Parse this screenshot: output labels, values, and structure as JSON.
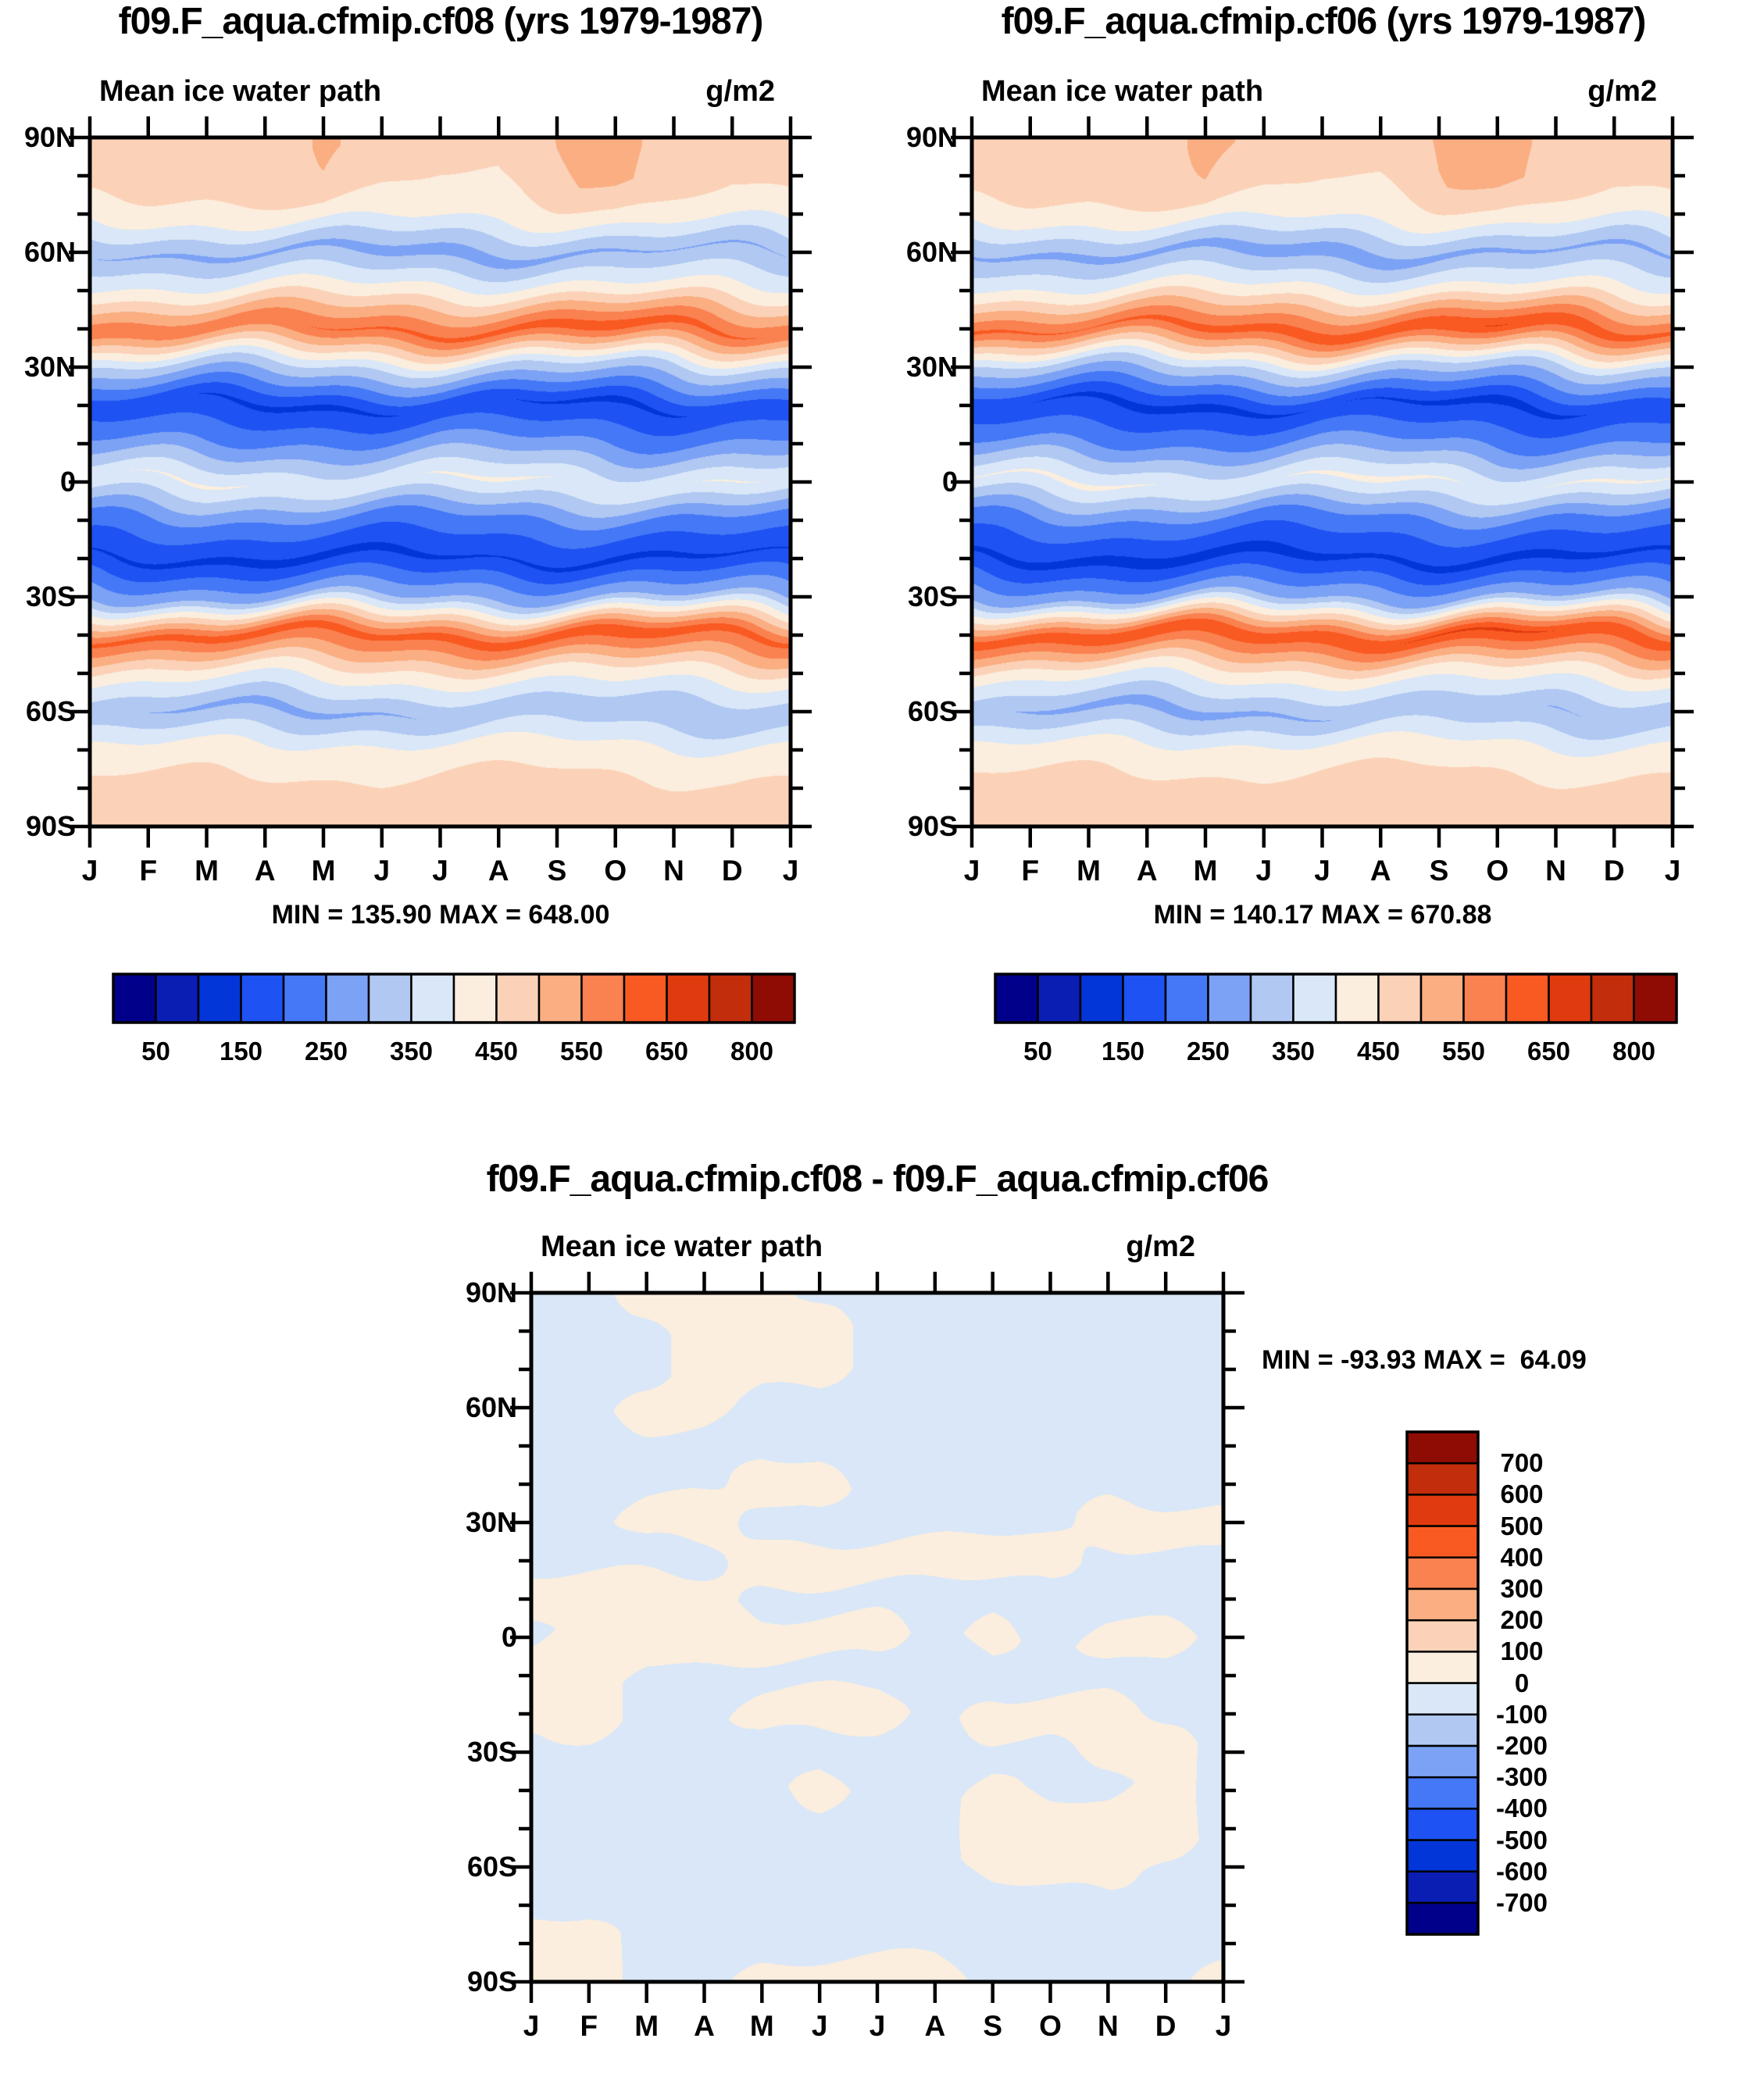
{
  "figure": {
    "panels": [
      {
        "title": "f09.F_aqua.cfmip.cf08 (yrs 1979-1987)",
        "subtitle": "Mean ice water path",
        "units": "g/m2",
        "minmax": "MIN = 135.90 MAX = 648.00"
      },
      {
        "title": "f09.F_aqua.cfmip.cf06 (yrs 1979-1987)",
        "subtitle": "Mean ice water path",
        "units": "g/m2",
        "minmax": "MIN = 140.17 MAX = 670.88"
      },
      {
        "title": "f09.F_aqua.cfmip.cf08 - f09.F_aqua.cfmip.cf06",
        "subtitle": "Mean ice water path",
        "units": "g/m2",
        "minmax": "MIN = -93.93 MAX =  64.09"
      }
    ],
    "axis": {
      "lat_labels": [
        "90N",
        "60N",
        "30N",
        "0",
        "30S",
        "60S",
        "90S"
      ],
      "month_labels": [
        "J",
        "F",
        "M",
        "A",
        "M",
        "J",
        "J",
        "A",
        "S",
        "O",
        "N",
        "D",
        "J"
      ]
    },
    "colorbars": {
      "top_labels": [
        "50",
        "150",
        "250",
        "350",
        "450",
        "550",
        "650",
        "800"
      ],
      "diff_labels": [
        "700",
        "600",
        "500",
        "400",
        "300",
        "200",
        "100",
        "0",
        "-100",
        "-200",
        "-300",
        "-400",
        "-500",
        "-600",
        "-700"
      ],
      "palette": [
        "#00008B",
        "#0A1EB4",
        "#0336D8",
        "#1E52F2",
        "#4478F6",
        "#7CA2F5",
        "#B0C8F2",
        "#D9E7F8",
        "#FBEEDE",
        "#FBD2B8",
        "#FAAE82",
        "#FA8150",
        "#F95A21",
        "#E03A0F",
        "#C22D0B",
        "#8E0C04"
      ]
    }
  },
  "chart_data": [
    {
      "type": "heatmap",
      "name": "f09.F_aqua.cfmip.cf08",
      "title": "Mean ice water path",
      "units": "g/m2",
      "x_labels": [
        "J",
        "F",
        "M",
        "A",
        "M",
        "J",
        "J",
        "A",
        "S",
        "O",
        "N",
        "D",
        "J"
      ],
      "y_lat_deg": [
        90,
        80,
        70,
        60,
        50,
        40,
        30,
        20,
        10,
        0,
        -10,
        -20,
        -30,
        -40,
        -50,
        -60,
        -70,
        -80,
        -90
      ],
      "levels": [
        50,
        100,
        150,
        200,
        250,
        300,
        350,
        400,
        450,
        500,
        550,
        600,
        650,
        700,
        800
      ],
      "min": 135.9,
      "max": 648.0,
      "values": [
        [
          470,
          468,
          470,
          478,
          505,
          488,
          472,
          468,
          502,
          512,
          486,
          470,
          470
        ],
        [
          478,
          482,
          476,
          486,
          498,
          470,
          452,
          448,
          495,
          508,
          482,
          462,
          478
        ],
        [
          430,
          432,
          428,
          430,
          436,
          420,
          415,
          412,
          428,
          438,
          430,
          422,
          430
        ],
        [
          300,
          295,
          290,
          292,
          288,
          282,
          278,
          282,
          290,
          295,
          298,
          296,
          300
        ],
        [
          420,
          415,
          412,
          416,
          422,
          426,
          430,
          432,
          426,
          420,
          415,
          418,
          420
        ],
        [
          595,
          590,
          588,
          596,
          602,
          606,
          612,
          618,
          628,
          634,
          622,
          606,
          595
        ],
        [
          340,
          335,
          330,
          334,
          340,
          346,
          350,
          352,
          344,
          338,
          332,
          336,
          340
        ],
        [
          168,
          158,
          148,
          140,
          138,
          146,
          158,
          152,
          144,
          138,
          146,
          162,
          168
        ],
        [
          262,
          252,
          246,
          250,
          256,
          262,
          272,
          266,
          256,
          250,
          256,
          262,
          262
        ],
        [
          398,
          402,
          408,
          398,
          388,
          392,
          404,
          410,
          400,
          392,
          398,
          404,
          398
        ],
        [
          238,
          244,
          250,
          244,
          234,
          228,
          234,
          240,
          246,
          240,
          234,
          240,
          238
        ],
        [
          148,
          143,
          138,
          136,
          134,
          138,
          144,
          148,
          143,
          138,
          141,
          146,
          148
        ],
        [
          298,
          292,
          286,
          282,
          288,
          294,
          300,
          306,
          300,
          294,
          288,
          294,
          298
        ],
        [
          612,
          618,
          624,
          630,
          622,
          616,
          622,
          628,
          634,
          640,
          630,
          620,
          612
        ],
        [
          428,
          424,
          420,
          424,
          430,
          436,
          430,
          424,
          430,
          436,
          430,
          424,
          428
        ],
        [
          312,
          300,
          290,
          286,
          290,
          296,
          302,
          312,
          318,
          312,
          302,
          306,
          312
        ],
        [
          420,
          414,
          410,
          414,
          420,
          426,
          430,
          426,
          420,
          414,
          410,
          414,
          420
        ],
        [
          462,
          468,
          474,
          468,
          462,
          456,
          462,
          470,
          476,
          470,
          462,
          456,
          462
        ],
        [
          458,
          464,
          470,
          464,
          458,
          452,
          458,
          464,
          470,
          464,
          458,
          452,
          458
        ]
      ]
    },
    {
      "type": "heatmap",
      "name": "f09.F_aqua.cfmip.cf06",
      "title": "Mean ice water path",
      "units": "g/m2",
      "x_labels": [
        "J",
        "F",
        "M",
        "A",
        "M",
        "J",
        "J",
        "A",
        "S",
        "O",
        "N",
        "D",
        "J"
      ],
      "y_lat_deg": [
        90,
        80,
        70,
        60,
        50,
        40,
        30,
        20,
        10,
        0,
        -10,
        -20,
        -30,
        -40,
        -50,
        -60,
        -70,
        -80,
        -90
      ],
      "levels": [
        50,
        100,
        150,
        200,
        250,
        300,
        350,
        400,
        450,
        500,
        550,
        600,
        650,
        700,
        800
      ],
      "min": 140.17,
      "max": 670.88,
      "values": [
        [
          475,
          470,
          472,
          482,
          508,
          492,
          475,
          470,
          505,
          515,
          490,
          474,
          475
        ],
        [
          482,
          486,
          480,
          490,
          500,
          474,
          456,
          452,
          498,
          512,
          486,
          466,
          482
        ],
        [
          432,
          434,
          430,
          432,
          438,
          422,
          418,
          415,
          430,
          440,
          432,
          424,
          432
        ],
        [
          296,
          290,
          286,
          288,
          284,
          278,
          274,
          278,
          286,
          292,
          295,
          292,
          296
        ],
        [
          418,
          412,
          410,
          414,
          420,
          424,
          428,
          430,
          424,
          418,
          413,
          416,
          418
        ],
        [
          612,
          606,
          602,
          612,
          620,
          624,
          630,
          636,
          646,
          654,
          640,
          622,
          612
        ],
        [
          336,
          330,
          326,
          330,
          336,
          342,
          346,
          348,
          340,
          334,
          328,
          332,
          336
        ],
        [
          160,
          150,
          142,
          136,
          134,
          142,
          152,
          147,
          140,
          134,
          142,
          156,
          160
        ],
        [
          256,
          246,
          240,
          244,
          250,
          256,
          266,
          260,
          250,
          244,
          250,
          256,
          256
        ],
        [
          402,
          406,
          412,
          402,
          392,
          396,
          408,
          414,
          404,
          396,
          402,
          408,
          402
        ],
        [
          234,
          240,
          246,
          240,
          230,
          224,
          230,
          236,
          242,
          236,
          230,
          236,
          234
        ],
        [
          144,
          139,
          134,
          132,
          130,
          134,
          140,
          144,
          139,
          134,
          137,
          142,
          144
        ],
        [
          294,
          288,
          282,
          278,
          284,
          290,
          296,
          302,
          296,
          290,
          284,
          290,
          294
        ],
        [
          628,
          634,
          642,
          650,
          640,
          632,
          640,
          648,
          656,
          662,
          650,
          638,
          628
        ],
        [
          424,
          420,
          416,
          420,
          426,
          432,
          426,
          420,
          426,
          432,
          426,
          420,
          424
        ],
        [
          308,
          296,
          286,
          282,
          286,
          292,
          298,
          308,
          314,
          308,
          298,
          302,
          308
        ],
        [
          422,
          416,
          412,
          416,
          422,
          428,
          432,
          428,
          422,
          416,
          412,
          416,
          422
        ],
        [
          466,
          472,
          478,
          472,
          466,
          460,
          466,
          474,
          480,
          474,
          466,
          460,
          466
        ],
        [
          462,
          468,
          474,
          468,
          462,
          456,
          462,
          468,
          474,
          468,
          462,
          456,
          462
        ]
      ]
    },
    {
      "type": "heatmap",
      "name": "difference (cf08 - cf06)",
      "title": "Mean ice water path",
      "units": "g/m2",
      "x_labels": [
        "J",
        "F",
        "M",
        "A",
        "M",
        "J",
        "J",
        "A",
        "S",
        "O",
        "N",
        "D",
        "J"
      ],
      "y_lat_deg": [
        90,
        80,
        70,
        60,
        50,
        40,
        30,
        20,
        10,
        0,
        -10,
        -20,
        -30,
        -40,
        -50,
        -60,
        -70,
        -80,
        -90
      ],
      "levels": [
        -700,
        -600,
        -500,
        -400,
        -300,
        -200,
        -100,
        0,
        100,
        200,
        300,
        400,
        500,
        600,
        700
      ],
      "min": -93.93,
      "max": 64.09,
      "values": [
        [
          -25,
          -25,
          35,
          35,
          35,
          -25,
          -25,
          -25,
          -25,
          -25,
          -25,
          -25,
          -25
        ],
        [
          -25,
          -25,
          -25,
          35,
          38,
          35,
          -25,
          -25,
          -25,
          -25,
          -25,
          -25,
          -25
        ],
        [
          -25,
          -25,
          -25,
          35,
          38,
          35,
          -25,
          -25,
          -25,
          -25,
          -25,
          -25,
          -25
        ],
        [
          -25,
          -25,
          35,
          35,
          -25,
          -25,
          -25,
          -25,
          -25,
          -25,
          -25,
          -25,
          -25
        ],
        [
          -25,
          -25,
          -25,
          -25,
          -25,
          -25,
          -25,
          -25,
          -25,
          -25,
          -25,
          -25,
          -25
        ],
        [
          -25,
          -25,
          -25,
          -25,
          32,
          32,
          -25,
          -25,
          -25,
          -25,
          -25,
          -25,
          -25
        ],
        [
          -25,
          -25,
          35,
          35,
          -25,
          -25,
          -25,
          -25,
          -25,
          -25,
          30,
          30,
          30
        ],
        [
          -25,
          -25,
          -25,
          -25,
          35,
          35,
          35,
          35,
          35,
          30,
          -25,
          -25,
          -25
        ],
        [
          35,
          35,
          35,
          35,
          -25,
          -25,
          -25,
          -25,
          -25,
          -25,
          -25,
          -25,
          -25
        ],
        [
          -25,
          35,
          35,
          35,
          35,
          35,
          35,
          -25,
          25,
          -25,
          32,
          32,
          -25
        ],
        [
          35,
          35,
          -25,
          -25,
          -25,
          -25,
          -25,
          -25,
          -25,
          -25,
          -25,
          -25,
          -25
        ],
        [
          35,
          35,
          -25,
          -25,
          35,
          35,
          35,
          -25,
          35,
          35,
          35,
          -25,
          -25
        ],
        [
          -25,
          -25,
          -25,
          -25,
          -25,
          -25,
          -25,
          -25,
          -25,
          -25,
          32,
          32,
          -25
        ],
        [
          -25,
          -25,
          -25,
          -25,
          -25,
          30,
          -25,
          -25,
          30,
          -25,
          -25,
          28,
          -25
        ],
        [
          -25,
          -25,
          -25,
          -25,
          -25,
          -25,
          -25,
          -25,
          35,
          35,
          35,
          35,
          -25
        ],
        [
          -25,
          -25,
          -25,
          -25,
          -25,
          -25,
          -25,
          -25,
          30,
          35,
          30,
          -25,
          -25
        ],
        [
          -25,
          -25,
          -25,
          -25,
          -25,
          -25,
          -25,
          -25,
          -25,
          -25,
          -25,
          -25,
          -25
        ],
        [
          35,
          30,
          -25,
          -25,
          -25,
          -25,
          -25,
          -25,
          -25,
          -25,
          -25,
          -25,
          -25
        ],
        [
          35,
          35,
          -25,
          -25,
          35,
          35,
          35,
          35,
          -25,
          -25,
          -25,
          -25,
          30
        ]
      ]
    }
  ]
}
